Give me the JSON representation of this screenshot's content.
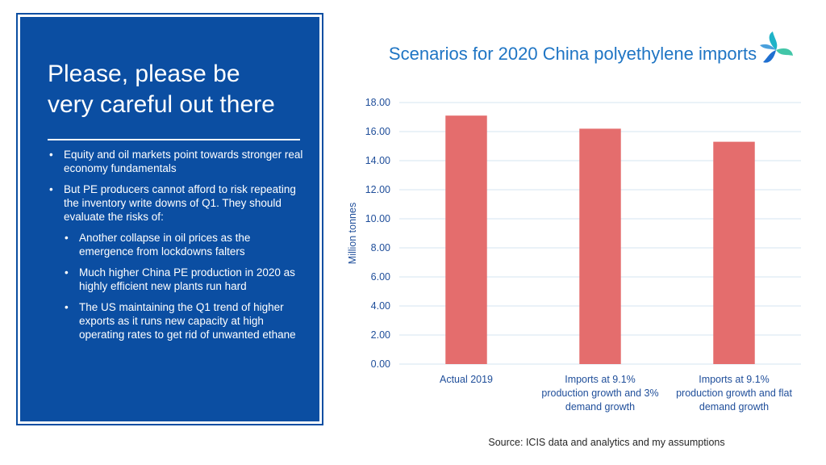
{
  "panel": {
    "title": "Please, please be\nvery careful out there",
    "bullets": [
      {
        "text": "Equity and oil markets point towards stronger real economy fundamentals",
        "level": 1
      },
      {
        "text": "But PE producers cannot afford to risk repeating the inventory write downs of Q1. They should evaluate the risks of:",
        "level": 1
      },
      {
        "text": "Another collapse in oil prices as the emergence from lockdowns falters",
        "level": 2
      },
      {
        "text": "Much higher China PE production in 2020 as highly efficient new plants run hard",
        "level": 2
      },
      {
        "text": "The US maintaining the Q1 trend of higher exports as it runs new capacity at high operating rates to get rid of unwanted ethane",
        "level": 2
      }
    ]
  },
  "chart_data": {
    "type": "bar",
    "title": "Scenarios for 2020 China polyethylene imports",
    "xlabel": "",
    "ylabel": "Million tonnes",
    "categories": [
      "Actual 2019",
      "Imports at 9.1% production growth and 3% demand growth",
      "Imports at 9.1% production growth and flat demand growth"
    ],
    "category_lines": [
      [
        "Actual 2019"
      ],
      [
        "Imports at 9.1%",
        "production growth and 3%",
        "demand growth"
      ],
      [
        "Imports at 9.1%",
        "production growth and flat",
        "demand growth"
      ]
    ],
    "values": [
      17.1,
      16.2,
      15.3
    ],
    "ylim": [
      0,
      18
    ],
    "yticks": [
      "0.00",
      "2.00",
      "4.00",
      "6.00",
      "8.00",
      "10.00",
      "12.00",
      "14.00",
      "16.00",
      "18.00"
    ],
    "grid": true,
    "colors": {
      "bar": "#e46d6d",
      "axis_text": "#1f4e9a",
      "grid": "#d6e4f2",
      "title": "#1f75c4"
    }
  },
  "source": "Source: ICIS data and analytics and my assumptions",
  "logo": {
    "icon": "company-logo-icon",
    "colors": [
      "#1fb3c8",
      "#1f6fd0",
      "#42c6a8"
    ]
  }
}
